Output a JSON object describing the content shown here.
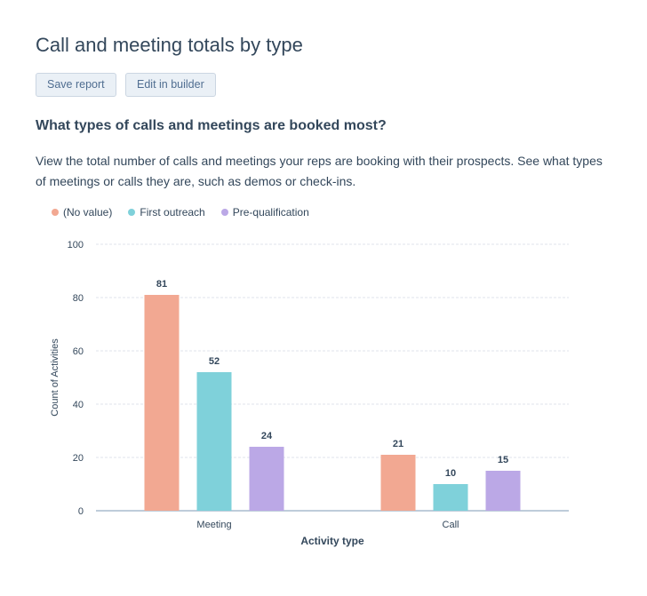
{
  "header": {
    "title": "Call and meeting totals by type",
    "save_label": "Save report",
    "edit_label": "Edit in builder"
  },
  "question": "What types of calls and meetings are booked most?",
  "description": "View the total number of calls and meetings your reps are booking with their prospects. See what types of meetings or calls they are, such as demos or check-ins.",
  "chart_data": {
    "type": "bar",
    "categories": [
      "Meeting",
      "Call"
    ],
    "series": [
      {
        "name": "(No value)",
        "values": [
          81,
          21
        ],
        "color": "#f2a892"
      },
      {
        "name": "First outreach",
        "values": [
          52,
          10
        ],
        "color": "#7fd1da"
      },
      {
        "name": "Pre-qualification",
        "values": [
          24,
          15
        ],
        "color": "#bba8e6"
      }
    ],
    "xlabel": "Activity type",
    "ylabel": "Count of Activities",
    "ylim": [
      0,
      100
    ],
    "yticks": [
      0,
      20,
      40,
      60,
      80,
      100
    ],
    "grid": true,
    "legend": "top-left"
  }
}
